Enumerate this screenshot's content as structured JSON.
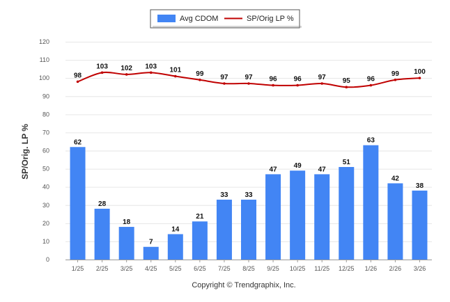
{
  "chart_data": {
    "type": "bar",
    "categories": [
      "1/25",
      "2/25",
      "3/25",
      "4/25",
      "5/25",
      "6/25",
      "7/25",
      "8/25",
      "9/25",
      "10/25",
      "11/25",
      "12/25",
      "1/26",
      "2/26",
      "3/26"
    ],
    "series": [
      {
        "name": "Avg CDOM",
        "type": "bar",
        "color": "#4285f4",
        "values": [
          62,
          28,
          18,
          7,
          14,
          21,
          33,
          33,
          47,
          49,
          47,
          51,
          63,
          42,
          38
        ]
      },
      {
        "name": "SP/Orig LP %",
        "type": "line",
        "color": "#c00000",
        "values": [
          98,
          103,
          102,
          103,
          101,
          99,
          97,
          97,
          96,
          96,
          97,
          95,
          96,
          99,
          100
        ]
      }
    ],
    "title": "",
    "xlabel": "",
    "ylabel": "SP/Orig. LP %",
    "ylim": [
      0,
      120
    ],
    "yticks": [
      0,
      10,
      20,
      30,
      40,
      50,
      60,
      70,
      80,
      90,
      100,
      110,
      120
    ],
    "grid": true,
    "legend": "top-center",
    "footer": "Copyright © Trendgraphix, Inc."
  }
}
